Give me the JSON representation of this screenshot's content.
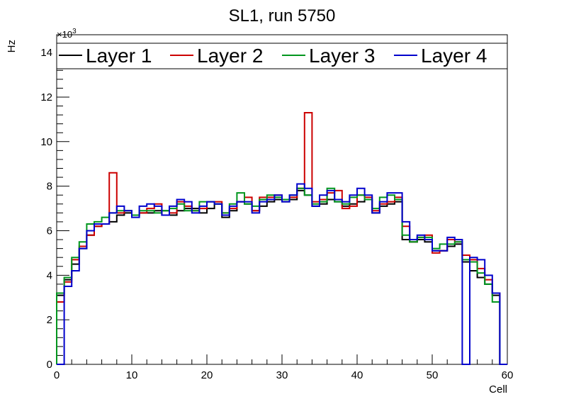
{
  "chart_data": {
    "type": "line",
    "subtype": "step-histogram",
    "title": "SL1, run 5750",
    "xlabel": "Cell",
    "ylabel": "Hz",
    "y_exponent_label": "×10",
    "y_exponent_power": "3",
    "xlim": [
      0,
      60
    ],
    "ylim": [
      0,
      14.8
    ],
    "x_ticks": [
      "0",
      "10",
      "20",
      "30",
      "40",
      "50",
      "60"
    ],
    "y_ticks": [
      "0",
      "2",
      "4",
      "6",
      "8",
      "10",
      "12",
      "14"
    ],
    "grid": false,
    "legend_position": "top",
    "bin_edges_start": 0,
    "bin_width": 1,
    "series": [
      {
        "name": "Layer 1",
        "color": "#000000",
        "values": [
          3.1,
          3.8,
          4.5,
          5.2,
          5.8,
          6.2,
          6.3,
          6.4,
          6.7,
          6.8,
          6.7,
          6.8,
          6.8,
          6.9,
          6.9,
          6.7,
          6.9,
          7.0,
          7.0,
          6.8,
          7.0,
          7.2,
          6.6,
          6.9,
          7.3,
          7.2,
          6.9,
          7.1,
          7.3,
          7.4,
          7.3,
          7.4,
          7.8,
          7.6,
          7.1,
          7.2,
          7.4,
          7.3,
          7.1,
          7.2,
          7.3,
          7.4,
          6.8,
          7.1,
          7.2,
          7.3,
          5.6,
          5.5,
          5.6,
          5.5,
          5.1,
          5.1,
          5.3,
          5.4,
          4.6,
          4.2,
          3.9,
          3.6,
          3.1,
          0
        ]
      },
      {
        "name": "Layer 2",
        "color": "#cc0000",
        "values": [
          2.8,
          3.7,
          4.7,
          5.3,
          5.8,
          6.2,
          6.3,
          8.6,
          6.8,
          6.9,
          6.7,
          6.8,
          7.0,
          7.2,
          6.7,
          6.8,
          7.3,
          7.1,
          6.9,
          7.0,
          7.3,
          7.3,
          6.8,
          7.0,
          7.3,
          7.5,
          6.9,
          7.5,
          7.5,
          7.6,
          7.4,
          7.5,
          7.9,
          11.3,
          7.3,
          7.4,
          7.7,
          7.8,
          7.0,
          7.1,
          7.6,
          7.5,
          6.9,
          7.2,
          7.3,
          7.5,
          6.2,
          5.5,
          5.7,
          5.8,
          5.0,
          5.1,
          5.6,
          5.5,
          4.9,
          4.7,
          4.3,
          3.8,
          3.2,
          0
        ]
      },
      {
        "name": "Layer 3",
        "color": "#00961e",
        "values": [
          3.2,
          3.9,
          4.8,
          5.5,
          6.3,
          6.4,
          6.6,
          6.8,
          6.9,
          6.9,
          6.7,
          6.9,
          6.9,
          6.8,
          6.9,
          7.0,
          7.2,
          6.9,
          6.9,
          7.3,
          7.3,
          7.2,
          6.8,
          7.2,
          7.7,
          7.2,
          7.1,
          7.4,
          7.6,
          7.5,
          7.4,
          7.6,
          7.9,
          7.6,
          7.2,
          7.3,
          7.9,
          7.3,
          7.2,
          7.5,
          7.6,
          7.4,
          7.0,
          7.5,
          7.6,
          7.4,
          5.8,
          5.5,
          5.7,
          5.7,
          5.2,
          5.4,
          5.4,
          5.5,
          4.7,
          4.6,
          4.1,
          3.6,
          2.8,
          0
        ]
      },
      {
        "name": "Layer 4",
        "color": "#0000cc",
        "values": [
          0,
          3.5,
          4.2,
          5.2,
          6.0,
          6.3,
          6.3,
          6.8,
          7.1,
          6.9,
          6.6,
          7.1,
          7.2,
          7.1,
          6.7,
          7.1,
          7.4,
          7.3,
          6.8,
          7.1,
          7.3,
          7.2,
          6.7,
          7.1,
          7.3,
          7.3,
          6.8,
          7.3,
          7.4,
          7.6,
          7.3,
          7.6,
          8.1,
          7.9,
          7.1,
          7.6,
          7.8,
          7.4,
          7.3,
          7.6,
          7.9,
          7.6,
          6.8,
          7.3,
          7.7,
          7.7,
          6.4,
          5.6,
          5.8,
          5.6,
          5.1,
          5.1,
          5.7,
          5.6,
          0,
          4.8,
          4.7,
          4.0,
          3.2,
          0
        ]
      }
    ]
  }
}
